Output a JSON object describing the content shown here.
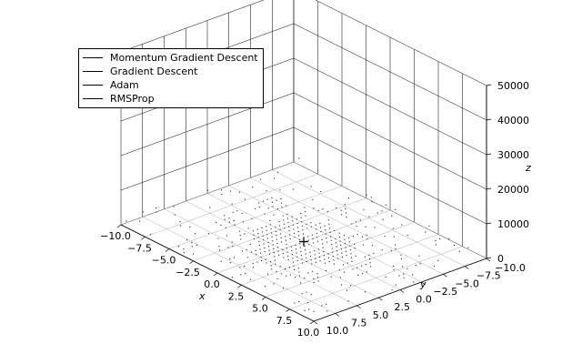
{
  "chart_data": {
    "type": "line",
    "projection": "3d",
    "series": [
      {
        "name": "Momentum Gradient Descent",
        "color": "#000000"
      },
      {
        "name": "Gradient Descent",
        "color": "#000000"
      },
      {
        "name": "Adam",
        "color": "#000000"
      },
      {
        "name": "RMSProp",
        "color": "#000000"
      }
    ],
    "legend_position": "top-left",
    "xlabel": "x",
    "ylabel": "y",
    "zlabel": "z",
    "xlim": [
      -10,
      10
    ],
    "ylim": [
      -10,
      10
    ],
    "zlim": [
      0,
      50000
    ],
    "x_ticks": [
      "−10.0",
      "−7.5",
      "−5.0",
      "−2.5",
      "0.0",
      "2.5",
      "5.0",
      "7.5",
      "10.0"
    ],
    "y_ticks": [
      "−10.0",
      "−7.5",
      "−5.0",
      "−2.5",
      "0.0",
      "2.5",
      "5.0",
      "7.5",
      "10.0"
    ],
    "z_ticks": [
      "0",
      "10000",
      "20000",
      "30000",
      "40000",
      "50000"
    ],
    "surface": "dotted contour surface, minimum near (0, 0)",
    "grid": true,
    "marker_color": "#000000"
  }
}
